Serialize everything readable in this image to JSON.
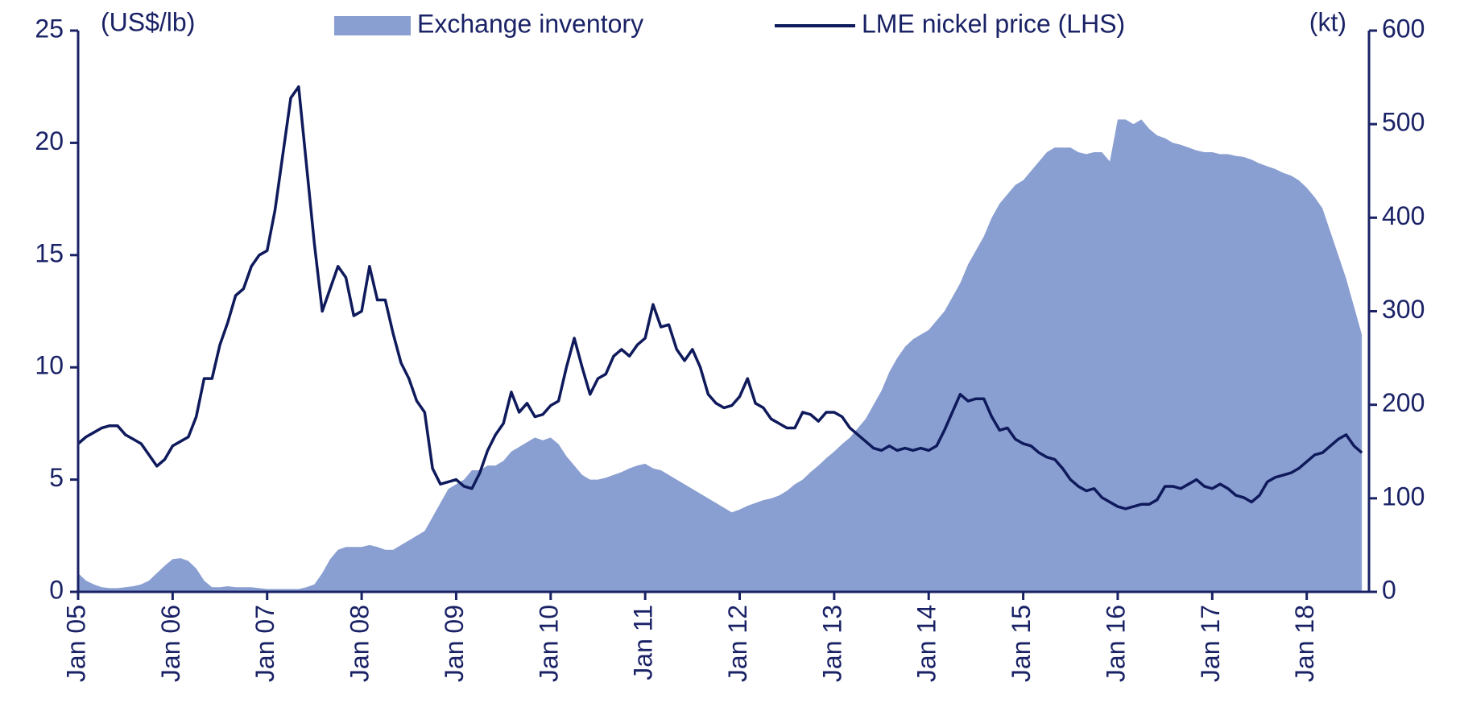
{
  "chart_data": {
    "type": "line",
    "y_label": "(US$/lb)",
    "y2_label": "(kt)",
    "categories": [
      "Jan 05",
      null,
      null,
      null,
      null,
      null,
      null,
      null,
      null,
      null,
      null,
      null,
      "Jan 06",
      null,
      null,
      null,
      null,
      null,
      null,
      null,
      null,
      null,
      null,
      null,
      "Jan 07",
      null,
      null,
      null,
      null,
      null,
      null,
      null,
      null,
      null,
      null,
      null,
      "Jan 08",
      null,
      null,
      null,
      null,
      null,
      null,
      null,
      null,
      null,
      null,
      null,
      "Jan 09",
      null,
      null,
      null,
      null,
      null,
      null,
      null,
      null,
      null,
      null,
      null,
      "Jan 10",
      null,
      null,
      null,
      null,
      null,
      null,
      null,
      null,
      null,
      null,
      null,
      "Jan 11",
      null,
      null,
      null,
      null,
      null,
      null,
      null,
      null,
      null,
      null,
      null,
      "Jan 12",
      null,
      null,
      null,
      null,
      null,
      null,
      null,
      null,
      null,
      null,
      null,
      "Jan 13",
      null,
      null,
      null,
      null,
      null,
      null,
      null,
      null,
      null,
      null,
      null,
      "Jan 14",
      null,
      null,
      null,
      null,
      null,
      null,
      null,
      null,
      null,
      null,
      null,
      "Jan 15",
      null,
      null,
      null,
      null,
      null,
      null,
      null,
      null,
      null,
      null,
      null,
      "Jan 16",
      null,
      null,
      null,
      null,
      null,
      null,
      null,
      null,
      null,
      null,
      null,
      "Jan 17",
      null,
      null,
      null,
      null,
      null,
      null,
      null,
      null,
      null,
      null,
      null,
      "Jan 18",
      null,
      null,
      null,
      null,
      null,
      null,
      null
    ],
    "series": [
      {
        "name": "Exchange inventory",
        "type": "area",
        "axis": "y2",
        "color": "#8a9fd1",
        "values": [
          20,
          12,
          8,
          5,
          4,
          4,
          5,
          6,
          8,
          12,
          20,
          28,
          35,
          36,
          33,
          25,
          12,
          5,
          5,
          6,
          5,
          5,
          5,
          4,
          3,
          3,
          3,
          3,
          3,
          5,
          8,
          20,
          35,
          45,
          48,
          48,
          48,
          50,
          48,
          45,
          45,
          50,
          55,
          60,
          65,
          80,
          95,
          110,
          115,
          120,
          130,
          130,
          135,
          135,
          140,
          150,
          155,
          160,
          165,
          162,
          165,
          158,
          145,
          135,
          125,
          120,
          120,
          122,
          125,
          128,
          132,
          135,
          137,
          132,
          130,
          125,
          120,
          115,
          110,
          105,
          100,
          95,
          90,
          85,
          88,
          92,
          95,
          98,
          100,
          103,
          108,
          115,
          120,
          128,
          135,
          143,
          150,
          158,
          165,
          175,
          185,
          200,
          215,
          235,
          250,
          262,
          270,
          275,
          280,
          290,
          300,
          315,
          330,
          350,
          365,
          380,
          400,
          415,
          425,
          435,
          440,
          450,
          460,
          470,
          475,
          475,
          475,
          470,
          468,
          470,
          470,
          460,
          505,
          505,
          500,
          505,
          495,
          488,
          485,
          480,
          478,
          475,
          472,
          470,
          470,
          468,
          468,
          466,
          465,
          462,
          458,
          455,
          452,
          448,
          445,
          440,
          432,
          422,
          410,
          385,
          360,
          335,
          305,
          275
        ]
      },
      {
        "name": "LME nickel price (LHS)",
        "type": "line",
        "axis": "y",
        "color": "#0f1a5c",
        "values": [
          6.6,
          6.9,
          7.1,
          7.3,
          7.4,
          7.4,
          7.0,
          6.8,
          6.6,
          6.1,
          5.6,
          5.9,
          6.5,
          6.7,
          6.9,
          7.8,
          9.5,
          9.5,
          11.0,
          12.0,
          13.2,
          13.5,
          14.5,
          15.0,
          15.2,
          17.0,
          19.5,
          22.0,
          22.5,
          19.0,
          15.5,
          12.5,
          13.5,
          14.5,
          14.0,
          12.3,
          12.5,
          14.5,
          13.0,
          13.0,
          11.5,
          10.2,
          9.5,
          8.5,
          8.0,
          5.5,
          4.8,
          4.9,
          5.0,
          4.7,
          4.6,
          5.3,
          6.3,
          7.0,
          7.5,
          8.9,
          8.0,
          8.4,
          7.8,
          7.9,
          8.3,
          8.5,
          10.0,
          11.3,
          10.0,
          8.8,
          9.5,
          9.7,
          10.5,
          10.8,
          10.5,
          11.0,
          11.3,
          12.8,
          11.8,
          11.9,
          10.8,
          10.3,
          10.8,
          10.0,
          8.8,
          8.4,
          8.2,
          8.3,
          8.7,
          9.5,
          8.4,
          8.2,
          7.7,
          7.5,
          7.3,
          7.3,
          8.0,
          7.9,
          7.6,
          8.0,
          8.0,
          7.8,
          7.3,
          7.0,
          6.7,
          6.4,
          6.3,
          6.5,
          6.3,
          6.4,
          6.3,
          6.4,
          6.3,
          6.5,
          7.2,
          8.0,
          8.8,
          8.5,
          8.6,
          8.6,
          7.8,
          7.2,
          7.3,
          6.8,
          6.6,
          6.5,
          6.2,
          6.0,
          5.9,
          5.5,
          5.0,
          4.7,
          4.5,
          4.6,
          4.2,
          4.0,
          3.8,
          3.7,
          3.8,
          3.9,
          3.9,
          4.1,
          4.7,
          4.7,
          4.6,
          4.8,
          5.0,
          4.7,
          4.6,
          4.8,
          4.6,
          4.3,
          4.2,
          4.0,
          4.3,
          4.9,
          5.1,
          5.2,
          5.3,
          5.5,
          5.8,
          6.1,
          6.2,
          6.5,
          6.8,
          7.0,
          6.5,
          6.2
        ]
      }
    ],
    "ylim": [
      0,
      25
    ],
    "yticks": [
      0,
      5,
      10,
      15,
      20,
      25
    ],
    "y2lim": [
      0,
      600
    ],
    "y2ticks": [
      0,
      100,
      200,
      300,
      400,
      500,
      600
    ]
  }
}
